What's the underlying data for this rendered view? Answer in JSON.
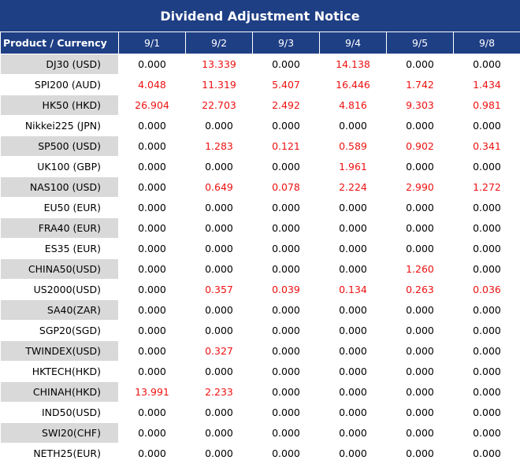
{
  "title": "Dividend Adjustment Notice",
  "header": {
    "product_label": "Product / Currency",
    "dates": [
      "9/1",
      "9/2",
      "9/3",
      "9/4",
      "9/5",
      "9/8"
    ]
  },
  "colors": {
    "header_bg": "#1f3f85",
    "header_text": "#ffffff",
    "shaded_cell": "#d9d9d9",
    "highlight_value": "#ee1111",
    "zero_value": "#000000"
  },
  "rows": [
    {
      "product": "DJ30 (USD)",
      "values": [
        "0.000",
        "13.339",
        "0.000",
        "14.138",
        "0.000",
        "0.000"
      ]
    },
    {
      "product": "SPI200 (AUD)",
      "values": [
        "4.048",
        "11.319",
        "5.407",
        "16.446",
        "1.742",
        "1.434"
      ]
    },
    {
      "product": "HK50 (HKD)",
      "values": [
        "26.904",
        "22.703",
        "2.492",
        "4.816",
        "9.303",
        "0.981"
      ]
    },
    {
      "product": "Nikkei225 (JPN)",
      "values": [
        "0.000",
        "0.000",
        "0.000",
        "0.000",
        "0.000",
        "0.000"
      ]
    },
    {
      "product": "SP500 (USD)",
      "values": [
        "0.000",
        "1.283",
        "0.121",
        "0.589",
        "0.902",
        "0.341"
      ]
    },
    {
      "product": "UK100 (GBP)",
      "values": [
        "0.000",
        "0.000",
        "0.000",
        "1.961",
        "0.000",
        "0.000"
      ]
    },
    {
      "product": "NAS100 (USD)",
      "values": [
        "0.000",
        "0.649",
        "0.078",
        "2.224",
        "2.990",
        "1.272"
      ]
    },
    {
      "product": "EU50 (EUR)",
      "values": [
        "0.000",
        "0.000",
        "0.000",
        "0.000",
        "0.000",
        "0.000"
      ]
    },
    {
      "product": "FRA40 (EUR)",
      "values": [
        "0.000",
        "0.000",
        "0.000",
        "0.000",
        "0.000",
        "0.000"
      ]
    },
    {
      "product": "ES35 (EUR)",
      "values": [
        "0.000",
        "0.000",
        "0.000",
        "0.000",
        "0.000",
        "0.000"
      ]
    },
    {
      "product": "CHINA50(USD)",
      "values": [
        "0.000",
        "0.000",
        "0.000",
        "0.000",
        "1.260",
        "0.000"
      ]
    },
    {
      "product": "US2000(USD)",
      "values": [
        "0.000",
        "0.357",
        "0.039",
        "0.134",
        "0.263",
        "0.036"
      ]
    },
    {
      "product": "SA40(ZAR)",
      "values": [
        "0.000",
        "0.000",
        "0.000",
        "0.000",
        "0.000",
        "0.000"
      ]
    },
    {
      "product": "SGP20(SGD)",
      "values": [
        "0.000",
        "0.000",
        "0.000",
        "0.000",
        "0.000",
        "0.000"
      ]
    },
    {
      "product": "TWINDEX(USD)",
      "values": [
        "0.000",
        "0.327",
        "0.000",
        "0.000",
        "0.000",
        "0.000"
      ]
    },
    {
      "product": "HKTECH(HKD)",
      "values": [
        "0.000",
        "0.000",
        "0.000",
        "0.000",
        "0.000",
        "0.000"
      ]
    },
    {
      "product": "CHINAH(HKD)",
      "values": [
        "13.991",
        "2.233",
        "0.000",
        "0.000",
        "0.000",
        "0.000"
      ]
    },
    {
      "product": "IND50(USD)",
      "values": [
        "0.000",
        "0.000",
        "0.000",
        "0.000",
        "0.000",
        "0.000"
      ]
    },
    {
      "product": "SWI20(CHF)",
      "values": [
        "0.000",
        "0.000",
        "0.000",
        "0.000",
        "0.000",
        "0.000"
      ]
    },
    {
      "product": "NETH25(EUR)",
      "values": [
        "0.000",
        "0.000",
        "0.000",
        "0.000",
        "0.000",
        "0.000"
      ]
    }
  ]
}
